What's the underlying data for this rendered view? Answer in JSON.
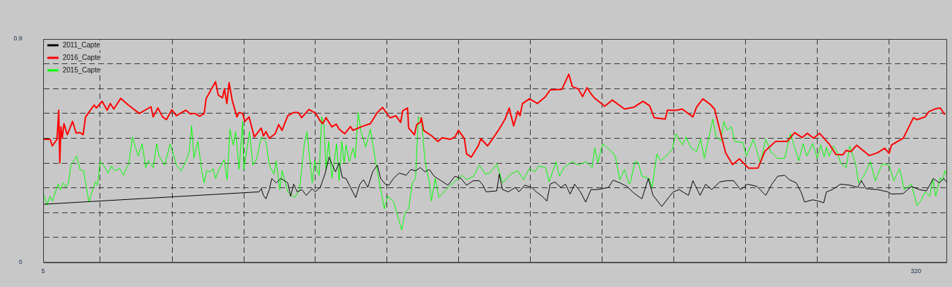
{
  "chart_data": {
    "type": "line",
    "xlim": [
      5,
      331
    ],
    "ylim": [
      0,
      0.9
    ],
    "xticks": [
      5,
      {
        "value": 25.6,
        "label": null
      },
      {
        "value": 51.5,
        "label": null
      },
      {
        "value": 77.4,
        "label": null
      },
      {
        "value": 103.2,
        "label": null
      },
      {
        "value": 129.1,
        "label": null
      },
      {
        "value": 155,
        "label": null
      },
      {
        "value": 180.8,
        "label": null
      },
      {
        "value": 206.7,
        "label": null
      },
      {
        "value": 232.6,
        "label": null
      },
      {
        "value": 258.4,
        "label": null
      },
      {
        "value": 284.3,
        "label": null
      },
      {
        "value": 310.2,
        "label": null
      },
      320
    ],
    "yticks": [
      0,
      {
        "value": 0.1,
        "label": null
      },
      {
        "value": 0.2,
        "label": null
      },
      {
        "value": 0.3,
        "label": null
      },
      {
        "value": 0.4,
        "label": null
      },
      {
        "value": 0.5,
        "label": null
      },
      {
        "value": 0.6,
        "label": null
      },
      {
        "value": 0.7,
        "label": null
      },
      {
        "value": 0.8,
        "label": null
      },
      0.9
    ],
    "grid": true,
    "legend": "top left",
    "marker": "none",
    "line_style": "solid",
    "series": [
      {
        "name": "2011_Capte",
        "color": "#000000",
        "x": [
          5,
          82.9,
          83.7,
          84.5,
          85.4,
          86.6,
          87.5,
          89.1,
          90.8,
          93.3,
          94.3,
          95.4,
          96.7,
          98.3,
          100,
          102.1,
          103.2,
          105,
          106.7,
          108.2,
          109.2,
          110.5,
          111.8,
          113,
          114.3,
          115.9,
          117.8,
          119.3,
          120.6,
          122.2,
          123.9,
          125.6,
          126.8,
          128.5,
          129.8,
          131.4,
          133.5,
          136,
          137.7,
          139.4,
          141.1,
          142.8,
          144.4,
          146.1,
          148.6,
          151.1,
          153.6,
          155.8,
          157.8,
          160.3,
          162.4,
          163.7,
          164.9,
          168.7,
          169.6,
          170.8,
          172.9,
          175.4,
          176.7,
          178.8,
          181.3,
          183,
          185.1,
          186.8,
          188,
          189.7,
          191.8,
          193.5,
          195.2,
          196.8,
          198.9,
          200.8,
          202.7,
          204.8,
          206.9,
          209,
          210.7,
          213.2,
          215.7,
          218.2,
          221.1,
          223.4,
          225.1,
          228.3,
          230.7,
          232.4,
          234.5,
          237.9,
          239.5,
          242.1,
          244.1,
          246.3,
          249.2,
          251.7,
          254.2,
          256.7,
          259.2,
          262.6,
          265.8,
          268,
          270.1,
          272.6,
          274.3,
          276.8,
          278.5,
          279.8,
          282.7,
          284.8,
          286.7,
          287.7,
          289.8,
          292.8,
          296.1,
          299,
          300.3,
          302,
          306.2,
          309.9,
          311.2,
          315.4,
          318.3,
          321.3,
          323.8,
          326.3,
          328.4,
          330.1,
          331
        ],
        "values": [
          0.234,
          0.284,
          0.297,
          0.27,
          0.256,
          0.293,
          0.338,
          0.32,
          0.338,
          0.32,
          0.266,
          0.315,
          0.284,
          0.293,
          0.27,
          0.297,
          0.284,
          0.302,
          0.356,
          0.424,
          0.396,
          0.365,
          0.401,
          0.342,
          0.338,
          0.302,
          0.261,
          0.315,
          0.333,
          0.302,
          0.365,
          0.392,
          0.338,
          0.315,
          0.311,
          0.338,
          0.36,
          0.351,
          0.374,
          0.369,
          0.382,
          0.365,
          0.374,
          0.347,
          0.329,
          0.311,
          0.347,
          0.338,
          0.311,
          0.329,
          0.329,
          0.311,
          0.284,
          0.288,
          0.356,
          0.293,
          0.284,
          0.302,
          0.284,
          0.311,
          0.302,
          0.284,
          0.266,
          0.247,
          0.315,
          0.324,
          0.302,
          0.315,
          0.275,
          0.315,
          0.284,
          0.243,
          0.293,
          0.293,
          0.297,
          0.302,
          0.331,
          0.32,
          0.306,
          0.279,
          0.256,
          0.338,
          0.27,
          0.225,
          0.261,
          0.284,
          0.293,
          0.27,
          0.329,
          0.27,
          0.315,
          0.293,
          0.324,
          0.329,
          0.329,
          0.293,
          0.315,
          0.306,
          0.27,
          0.315,
          0.347,
          0.351,
          0.333,
          0.32,
          0.284,
          0.243,
          0.252,
          0.247,
          0.24,
          0.284,
          0.293,
          0.315,
          0.311,
          0.302,
          0.329,
          0.297,
          0.293,
          0.284,
          0.275,
          0.277,
          0.306,
          0.293,
          0.288,
          0.338,
          0.32,
          0.338,
          0.324
        ]
      },
      {
        "name": "2016_Capte",
        "color": "#ff0000",
        "x": [
          5,
          7.5,
          8.3,
          10,
          10.6,
          11,
          11.4,
          11.9,
          12.5,
          13.7,
          15.6,
          16.9,
          18.3,
          19.4,
          20.3,
          21.9,
          23.4,
          24.2,
          26.3,
          28.1,
          29.2,
          30.5,
          33,
          35.5,
          39.7,
          43.9,
          44.7,
          46.4,
          48.1,
          49.5,
          51.4,
          53.1,
          56.5,
          58.1,
          59.8,
          61.5,
          63.1,
          63.8,
          67.2,
          68.2,
          69.7,
          70.4,
          71.3,
          72.1,
          73.2,
          74.9,
          75.7,
          77,
          77.8,
          79.3,
          81.2,
          83.7,
          84.5,
          85.4,
          86.6,
          88.7,
          90,
          91.2,
          93.3,
          95.4,
          97.1,
          98.3,
          100.9,
          103.4,
          104.9,
          105.9,
          107.1,
          109.2,
          110.8,
          111.8,
          113.8,
          115.9,
          116.8,
          119.7,
          123.1,
          125.6,
          127.5,
          130.2,
          132.3,
          134,
          134.8,
          136.5,
          136.9,
          139,
          139.8,
          141.1,
          141.5,
          142.3,
          145.3,
          147.4,
          149,
          152,
          153.6,
          154.9,
          157,
          157.8,
          159.5,
          162,
          163,
          165.4,
          167.1,
          169.6,
          171.7,
          173.2,
          174.8,
          176.3,
          177.1,
          178,
          180.5,
          183.4,
          186.3,
          188,
          192.2,
          194.7,
          196,
          198.1,
          199.7,
          201.3,
          202.7,
          203.9,
          207.7,
          210.4,
          214.8,
          218.2,
          221.5,
          223.9,
          225.5,
          229.5,
          230.3,
          233.7,
          235.6,
          239.5,
          240.8,
          243.1,
          245.8,
          247.3,
          251.3,
          253.8,
          256.3,
          259.6,
          263,
          265.5,
          269.3,
          273.5,
          276.2,
          278.9,
          280.8,
          283.1,
          285.2,
          288.6,
          291.1,
          293.6,
          294.8,
          296.5,
          298.6,
          303.2,
          306.2,
          308.7,
          310.3,
          311.2,
          315.4,
          319.1,
          320.4,
          323.3,
          324.6,
          327.1,
          328.8,
          330.4
        ],
        "values": [
          0.496,
          0.496,
          0.469,
          0.496,
          0.613,
          0.401,
          0.546,
          0.5,
          0.559,
          0.514,
          0.568,
          0.521,
          0.523,
          0.514,
          0.586,
          0.611,
          0.634,
          0.622,
          0.649,
          0.613,
          0.64,
          0.618,
          0.661,
          0.636,
          0.6,
          0.627,
          0.586,
          0.622,
          0.586,
          0.575,
          0.615,
          0.591,
          0.613,
          0.598,
          0.6,
          0.589,
          0.6,
          0.659,
          0.728,
          0.674,
          0.663,
          0.699,
          0.64,
          0.724,
          0.654,
          0.586,
          0.604,
          0.6,
          0.568,
          0.586,
          0.505,
          0.541,
          0.509,
          0.527,
          0.5,
          0.518,
          0.555,
          0.532,
          0.591,
          0.604,
          0.604,
          0.583,
          0.616,
          0.6,
          0.571,
          0.559,
          0.583,
          0.546,
          0.557,
          0.537,
          0.518,
          0.547,
          0.532,
          0.546,
          0.559,
          0.604,
          0.624,
          0.582,
          0.591,
          0.564,
          0.611,
          0.622,
          0.541,
          0.514,
          0.555,
          0.564,
          0.582,
          0.532,
          0.509,
          0.487,
          0.502,
          0.496,
          0.505,
          0.532,
          0.499,
          0.437,
          0.424,
          0.469,
          0.498,
          0.469,
          0.496,
          0.537,
          0.577,
          0.622,
          0.55,
          0.609,
          0.591,
          0.64,
          0.659,
          0.64,
          0.668,
          0.695,
          0.697,
          0.758,
          0.708,
          0.699,
          0.668,
          0.704,
          0.679,
          0.663,
          0.629,
          0.654,
          0.618,
          0.625,
          0.649,
          0.631,
          0.583,
          0.577,
          0.613,
          0.613,
          0.618,
          0.586,
          0.625,
          0.659,
          0.636,
          0.618,
          0.442,
          0.394,
          0.417,
          0.379,
          0.38,
          0.448,
          0.487,
          0.487,
          0.523,
          0.503,
          0.52,
          0.5,
          0.52,
          0.478,
          0.435,
          0.433,
          0.451,
          0.446,
          0.472,
          0.43,
          0.442,
          0.46,
          0.439,
          0.473,
          0.5,
          0.583,
          0.575,
          0.586,
          0.607,
          0.619,
          0.622,
          0.595
        ]
      },
      {
        "name": "2015_Capte",
        "color": "#00ff00",
        "x": [
          5,
          6.4,
          7.4,
          8.3,
          10.4,
          11.2,
          12.2,
          13.3,
          14.1,
          15,
          17.1,
          18.3,
          19.6,
          21.5,
          22.9,
          23.9,
          24.6,
          25.6,
          26.7,
          28.4,
          29.6,
          30.9,
          32.6,
          34,
          35.1,
          35.9,
          37.2,
          39.3,
          40.7,
          42,
          43,
          44.7,
          46,
          46.8,
          48.9,
          50.8,
          53.1,
          54.8,
          56.5,
          57.7,
          58.6,
          59.4,
          60.8,
          62.3,
          63.1,
          64,
          65.3,
          66.3,
          67.2,
          68.6,
          70.3,
          71.4,
          72.4,
          73.6,
          74.5,
          75.7,
          77,
          77.4,
          79.5,
          80.7,
          82,
          83.7,
          85.4,
          86.6,
          88.3,
          89.1,
          90.4,
          91.2,
          93.3,
          95.8,
          97.5,
          99.2,
          100.2,
          102.1,
          103,
          103.8,
          104.6,
          105.5,
          106.3,
          107.1,
          108,
          109.2,
          110.9,
          111.8,
          112.8,
          113.6,
          114.3,
          115.5,
          116.8,
          117.6,
          118.7,
          119.7,
          121.4,
          123.1,
          125.2,
          128.1,
          129.4,
          131.4,
          134.4,
          135.6,
          136.9,
          138.2,
          139.4,
          140.4,
          141.5,
          142.8,
          144.4,
          145.1,
          146.5,
          147.8,
          151.1,
          156.2,
          157.8,
          160.3,
          162.4,
          164.6,
          166.2,
          168.7,
          170.8,
          173.8,
          176.3,
          178.4,
          180.5,
          182.5,
          183.8,
          186.3,
          187.6,
          190.1,
          191.3,
          193,
          196,
          198.1,
          201,
          203.1,
          204.1,
          205.2,
          206.9,
          210.2,
          211.5,
          213.1,
          214.8,
          216.5,
          216.9,
          218.6,
          219.8,
          221.1,
          223.6,
          224.8,
          226.5,
          227.8,
          229.9,
          232,
          233.4,
          235.8,
          237,
          238.7,
          240.8,
          242.3,
          243.6,
          246.7,
          247.9,
          249.6,
          250.7,
          251.9,
          253.4,
          254.6,
          257.6,
          258.8,
          261.3,
          263.8,
          265.8,
          267.6,
          270.1,
          272.6,
          274.7,
          277.7,
          279.3,
          280.6,
          282.7,
          284.4,
          285.6,
          286.9,
          287.7,
          288.6,
          290.2,
          291.5,
          292.8,
          294.8,
          296.1,
          298.2,
          299.3,
          301.1,
          303.6,
          305.3,
          307.8,
          310.3,
          312,
          314.1,
          315.8,
          318.3,
          320.4,
          321.7,
          323.3,
          325,
          326.1,
          327.1,
          328.8,
          329.6,
          330.5,
          331
        ],
        "values": [
          0.279,
          0.231,
          0.266,
          0.247,
          0.315,
          0.293,
          0.32,
          0.302,
          0.32,
          0.392,
          0.428,
          0.374,
          0.369,
          0.243,
          0.293,
          0.324,
          0.311,
          0.406,
          0.392,
          0.36,
          0.388,
          0.369,
          0.378,
          0.351,
          0.382,
          0.396,
          0.505,
          0.428,
          0.478,
          0.382,
          0.41,
          0.382,
          0.478,
          0.428,
          0.392,
          0.478,
          0.392,
          0.369,
          0.406,
          0.446,
          0.55,
          0.419,
          0.487,
          0.365,
          0.32,
          0.369,
          0.365,
          0.378,
          0.338,
          0.378,
          0.415,
          0.333,
          0.537,
          0.473,
          0.527,
          0.374,
          0.568,
          0.374,
          0.527,
          0.392,
          0.415,
          0.505,
          0.487,
          0.392,
          0.356,
          0.41,
          0.293,
          0.369,
          0.284,
          0.261,
          0.293,
          0.473,
          0.527,
          0.32,
          0.41,
          0.374,
          0.351,
          0.586,
          0.555,
          0.374,
          0.487,
          0.338,
          0.478,
          0.329,
          0.487,
          0.401,
          0.473,
          0.406,
          0.46,
          0.419,
          0.604,
          0.527,
          0.464,
          0.537,
          0.392,
          0.216,
          0.266,
          0.247,
          0.13,
          0.202,
          0.216,
          0.32,
          0.338,
          0.586,
          0.577,
          0.41,
          0.32,
          0.247,
          0.338,
          0.261,
          0.302,
          0.351,
          0.333,
          0.347,
          0.392,
          0.356,
          0.36,
          0.396,
          0.32,
          0.356,
          0.369,
          0.333,
          0.378,
          0.365,
          0.388,
          0.382,
          0.324,
          0.406,
          0.347,
          0.382,
          0.406,
          0.392,
          0.406,
          0.382,
          0.46,
          0.401,
          0.478,
          0.446,
          0.428,
          0.333,
          0.374,
          0.315,
          0.32,
          0.407,
          0.401,
          0.347,
          0.338,
          0.302,
          0.437,
          0.41,
          0.428,
          0.455,
          0.518,
          0.473,
          0.505,
          0.464,
          0.446,
          0.496,
          0.419,
          0.577,
          0.505,
          0.491,
          0.568,
          0.532,
          0.546,
          0.487,
          0.482,
          0.428,
          0.496,
          0.401,
          0.496,
          0.446,
          0.419,
          0.419,
          0.518,
          0.41,
          0.478,
          0.428,
          0.478,
          0.419,
          0.473,
          0.424,
          0.464,
          0.428,
          0.469,
          0.446,
          0.401,
          0.382,
          0.469,
          0.396,
          0.32,
          0.347,
          0.406,
          0.329,
          0.396,
          0.392,
          0.329,
          0.378,
          0.293,
          0.315,
          0.229,
          0.247,
          0.284,
          0.266,
          0.338,
          0.266,
          0.342,
          0.329,
          0.369,
          0.356
        ]
      }
    ]
  }
}
